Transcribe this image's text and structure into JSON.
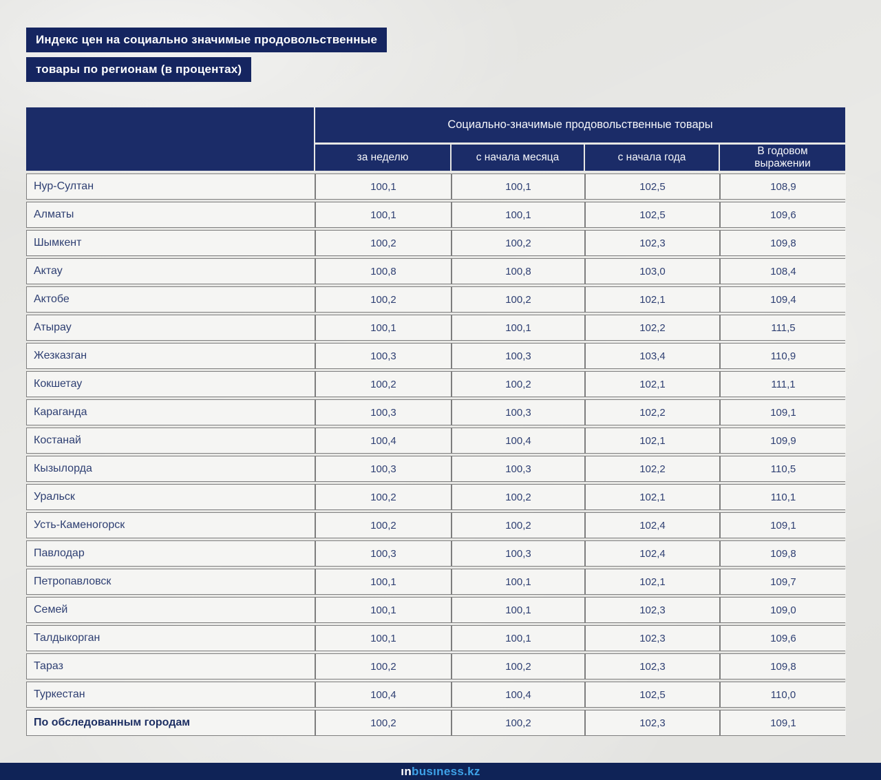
{
  "title": {
    "line1": "Индекс цен на социально значимые продовольственные",
    "line2": "товары по регионам (в процентах)"
  },
  "chart_data": {
    "type": "table",
    "title": "Индекс цен на социально значимые продовольственные товары по регионам (в процентах)",
    "group_header": "Социально-значимые продовольственные товары",
    "columns": [
      "за неделю",
      "с начала месяца",
      "с начала года",
      "В годовом выражении"
    ],
    "rows": [
      {
        "region": "Нур-Султан",
        "values": [
          "100,1",
          "100,1",
          "102,5",
          "108,9"
        ],
        "bold": false
      },
      {
        "region": "Алматы",
        "values": [
          "100,1",
          "100,1",
          "102,5",
          "109,6"
        ],
        "bold": false
      },
      {
        "region": "Шымкент",
        "values": [
          "100,2",
          "100,2",
          "102,3",
          "109,8"
        ],
        "bold": false
      },
      {
        "region": "Актау",
        "values": [
          "100,8",
          "100,8",
          "103,0",
          "108,4"
        ],
        "bold": false
      },
      {
        "region": "Актобе",
        "values": [
          "100,2",
          "100,2",
          "102,1",
          "109,4"
        ],
        "bold": false
      },
      {
        "region": "Атырау",
        "values": [
          "100,1",
          "100,1",
          "102,2",
          "111,5"
        ],
        "bold": false
      },
      {
        "region": "Жезказган",
        "values": [
          "100,3",
          "100,3",
          "103,4",
          "110,9"
        ],
        "bold": false
      },
      {
        "region": "Кокшетау",
        "values": [
          "100,2",
          "100,2",
          "102,1",
          "111,1"
        ],
        "bold": false
      },
      {
        "region": "Караганда",
        "values": [
          "100,3",
          "100,3",
          "102,2",
          "109,1"
        ],
        "bold": false
      },
      {
        "region": "Костанай",
        "values": [
          "100,4",
          "100,4",
          "102,1",
          "109,9"
        ],
        "bold": false
      },
      {
        "region": "Кызылорда",
        "values": [
          "100,3",
          "100,3",
          "102,2",
          "110,5"
        ],
        "bold": false
      },
      {
        "region": "Уральск",
        "values": [
          "100,2",
          "100,2",
          "102,1",
          "110,1"
        ],
        "bold": false
      },
      {
        "region": "Усть-Каменогорск",
        "values": [
          "100,2",
          "100,2",
          "102,4",
          "109,1"
        ],
        "bold": false
      },
      {
        "region": "Павлодар",
        "values": [
          "100,3",
          "100,3",
          "102,4",
          "109,8"
        ],
        "bold": false
      },
      {
        "region": "Петропавловск",
        "values": [
          "100,1",
          "100,1",
          "102,1",
          "109,7"
        ],
        "bold": false
      },
      {
        "region": "Семей",
        "values": [
          "100,1",
          "100,1",
          "102,3",
          "109,0"
        ],
        "bold": false
      },
      {
        "region": "Талдыкорган",
        "values": [
          "100,1",
          "100,1",
          "102,3",
          "109,6"
        ],
        "bold": false
      },
      {
        "region": "Тараз",
        "values": [
          "100,2",
          "100,2",
          "102,3",
          "109,8"
        ],
        "bold": false
      },
      {
        "region": "Туркестан",
        "values": [
          "100,4",
          "100,4",
          "102,5",
          "110,0"
        ],
        "bold": false
      },
      {
        "region": "По обследованным городам",
        "values": [
          "100,2",
          "100,2",
          "102,3",
          "109,1"
        ],
        "bold": true
      }
    ]
  },
  "footer": {
    "logo_white": "ın",
    "logo_blue": "busıness.kz"
  },
  "colors": {
    "title_navy": "#152560",
    "header_navy": "#1b2c68",
    "footer_navy": "#0f2357",
    "row_background": "#f5f5f3",
    "border_gray": "#7d7d7d",
    "text_navy": "#2e3f72",
    "logo_blue": "#3ea2e8",
    "page_background": "#e9e9e6"
  }
}
